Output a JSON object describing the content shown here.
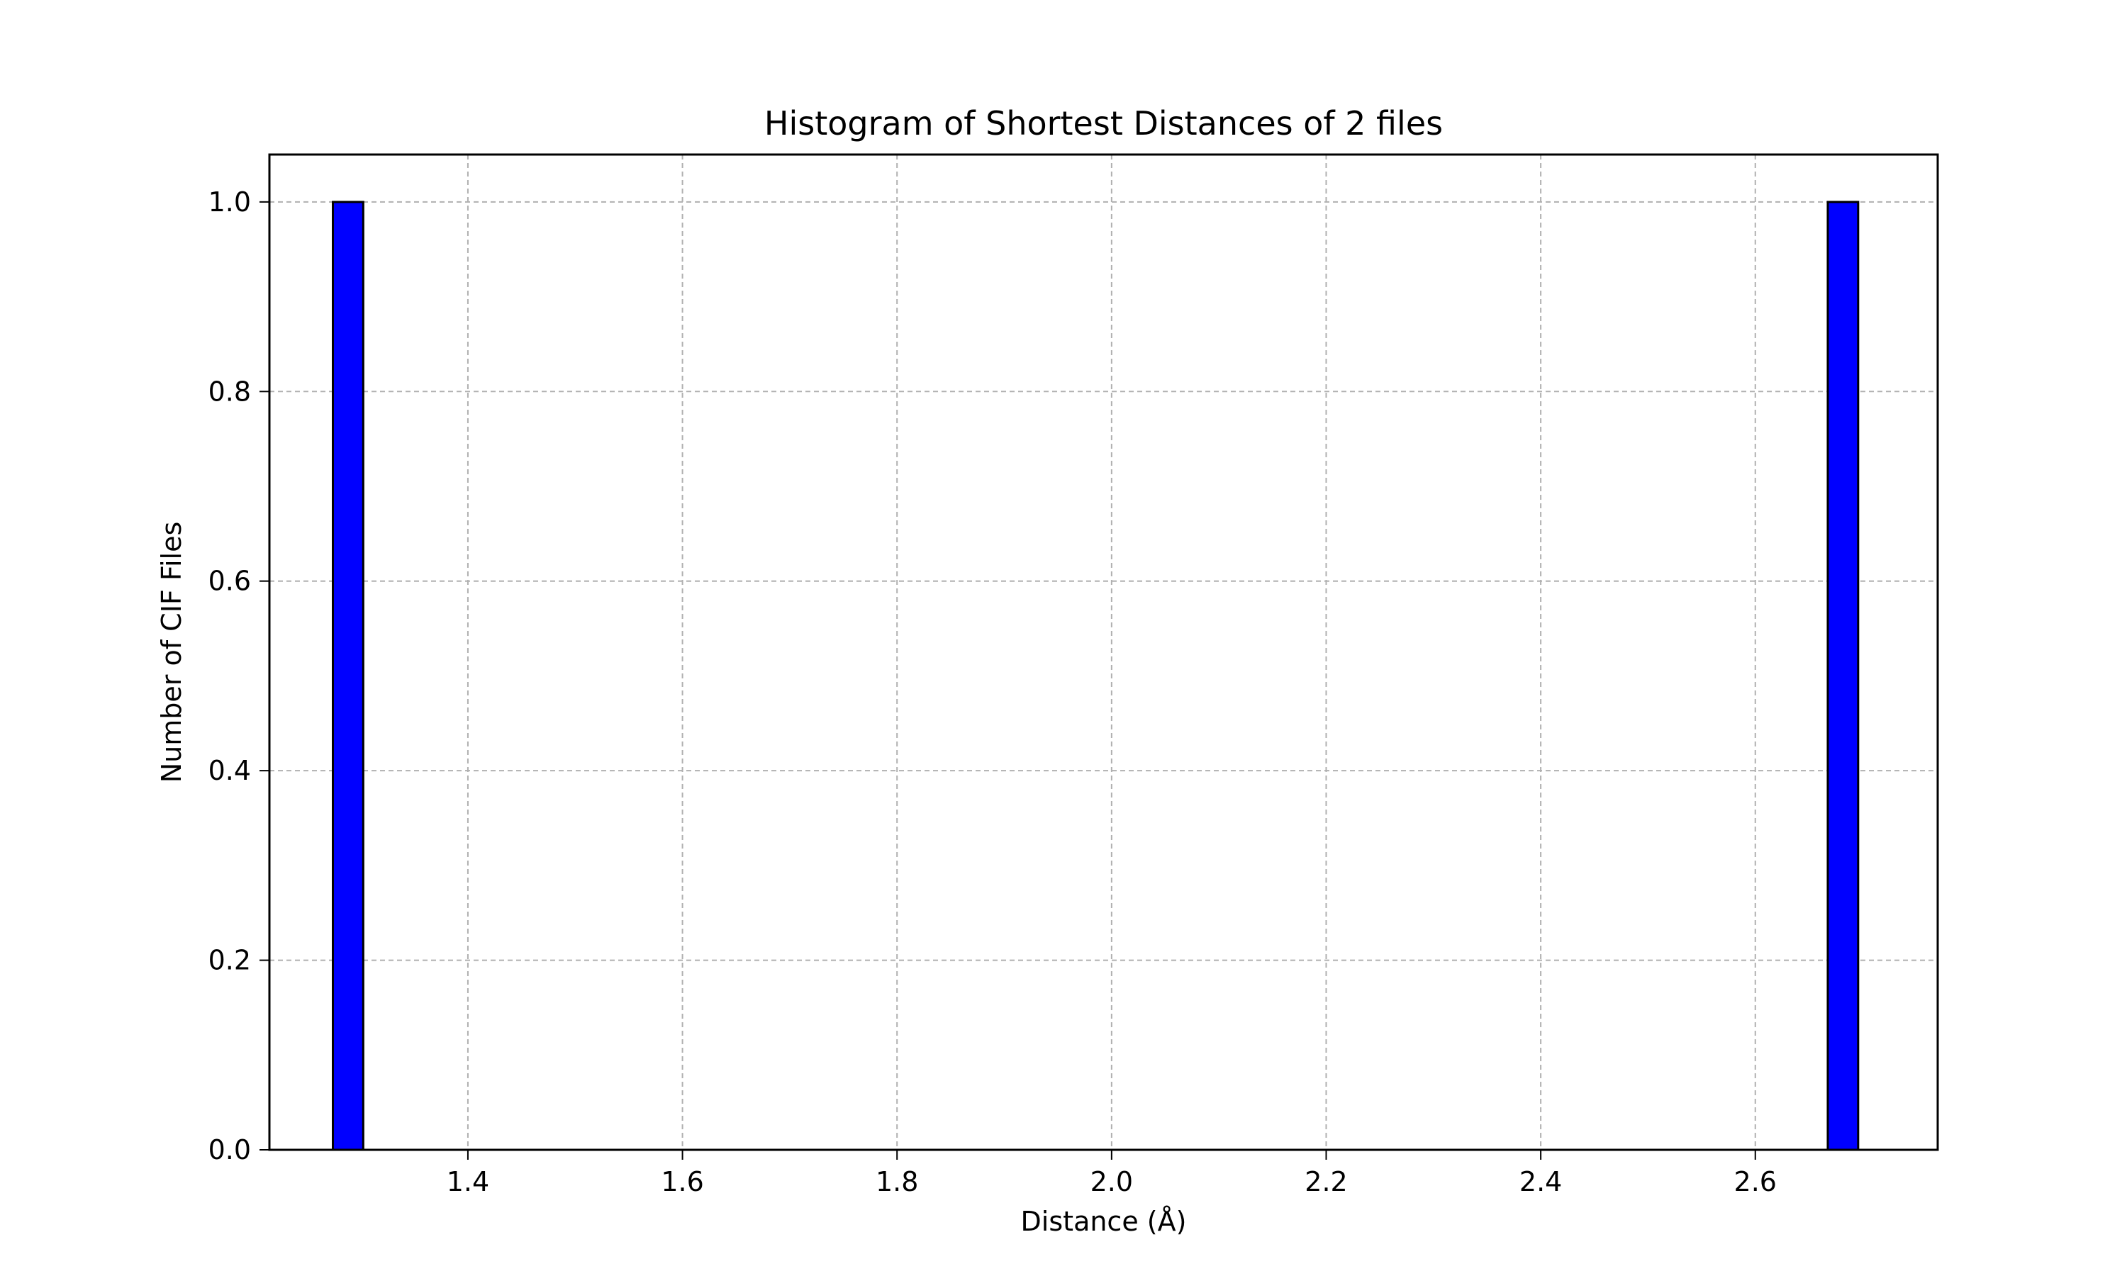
{
  "chart_data": {
    "type": "bar",
    "title": "Histogram of Shortest Distances of 2 files",
    "xlabel": "Distance (Å)",
    "ylabel": "Number of CIF Files",
    "xlim": [
      1.215,
      2.77
    ],
    "ylim": [
      0.0,
      1.05
    ],
    "xticks": [
      "1.4",
      "1.6",
      "1.8",
      "2.0",
      "2.2",
      "2.4",
      "2.6"
    ],
    "yticks": [
      "0.0",
      "0.2",
      "0.4",
      "0.6",
      "0.8",
      "1.0"
    ],
    "grid": true,
    "bin_width": 0.0283,
    "bins": [
      {
        "x": 1.2883,
        "value": 1
      },
      {
        "x": 2.6817,
        "value": 1
      }
    ],
    "bar_color": "#0000ff",
    "edge_color": "#000000"
  }
}
